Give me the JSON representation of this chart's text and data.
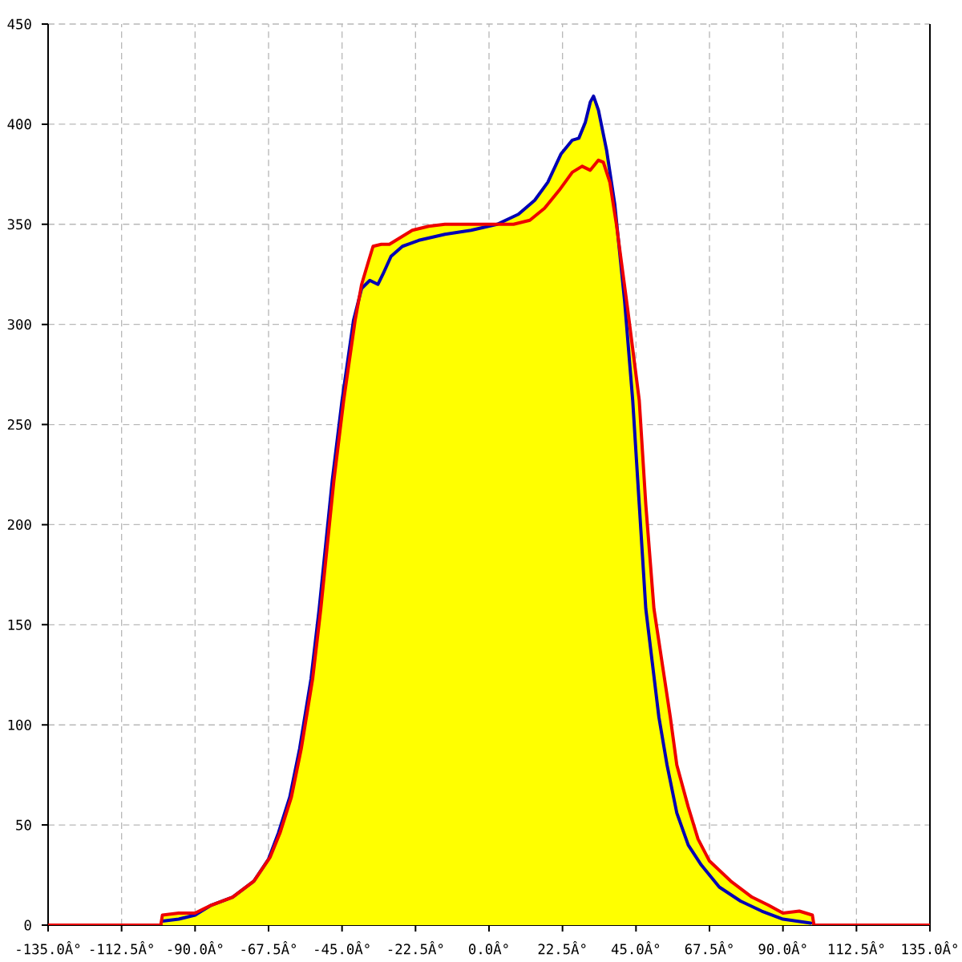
{
  "chart_data": {
    "type": "line",
    "xlim": [
      -135,
      135
    ],
    "ylim": [
      0,
      450
    ],
    "xticks": [
      {
        "value": -135,
        "label": "-135.0Â°"
      },
      {
        "value": -112.5,
        "label": "-112.5Â°"
      },
      {
        "value": -90,
        "label": "-90.0Â°"
      },
      {
        "value": -67.5,
        "label": "-67.5Â°"
      },
      {
        "value": -45,
        "label": "-45.0Â°"
      },
      {
        "value": -22.5,
        "label": "-22.5Â°"
      },
      {
        "value": 0,
        "label": "0.0Â°"
      },
      {
        "value": 22.5,
        "label": "22.5Â°"
      },
      {
        "value": 45,
        "label": "45.0Â°"
      },
      {
        "value": 67.5,
        "label": "67.5Â°"
      },
      {
        "value": 90,
        "label": "90.0Â°"
      },
      {
        "value": 112.5,
        "label": "112.5Â°"
      },
      {
        "value": 135,
        "label": "135.0Â°"
      }
    ],
    "yticks": [
      0,
      50,
      100,
      150,
      200,
      250,
      300,
      350,
      400,
      450
    ],
    "grid": true,
    "marker": "none",
    "line_style": "solid",
    "series": [
      {
        "type": "area",
        "color": "#ffff00",
        "x": [
          -100,
          -95,
          -90,
          -85,
          -78.5,
          -72,
          -67,
          -64,
          -60.5,
          -57.5,
          -54,
          -51.5,
          -47.5,
          -44.5,
          -41,
          -39,
          -37,
          -35.5,
          -33,
          -30.5,
          -27.5,
          -23.5,
          -18.5,
          -13.5,
          0,
          2.5,
          9,
          14,
          18,
          22,
          25.5,
          27.5,
          29.5,
          31,
          32,
          33.5,
          36,
          38.5,
          42.5,
          46,
          48,
          50.5,
          53,
          55.5,
          57.5,
          61,
          64,
          67.5,
          74,
          80.5,
          85.5,
          90,
          95,
          99
        ],
        "values": [
          5,
          6,
          6,
          10,
          14,
          22,
          34,
          46,
          64,
          88,
          123,
          158,
          222,
          262,
          302,
          320,
          331,
          339,
          340,
          340,
          343,
          347,
          349,
          350,
          350,
          350,
          355,
          362,
          371,
          385,
          392,
          393,
          401,
          411,
          414,
          407,
          387,
          360,
          307,
          262,
          210,
          158,
          131,
          104,
          80,
          59,
          43,
          32,
          22,
          14,
          10,
          6,
          7,
          5
        ]
      },
      {
        "color": "#0000b4",
        "x": [
          -100,
          -95,
          -90,
          -85,
          -78.5,
          -72,
          -67.5,
          -64.5,
          -61,
          -58,
          -54.5,
          -52,
          -48,
          -45,
          -41.5,
          -39,
          -36.5,
          -34,
          -32.5,
          -30,
          -26.5,
          -21.5,
          -13.5,
          -5.5,
          2.5,
          9,
          14,
          18,
          22,
          25.5,
          27.5,
          29.5,
          31,
          32,
          33.5,
          36,
          38.5,
          41.5,
          44,
          46,
          48,
          50,
          52,
          54.5,
          57.5,
          61,
          65,
          70.5,
          77,
          83.5,
          90,
          98.5
        ],
        "values": [
          2,
          3,
          5,
          10,
          14,
          22,
          33,
          46,
          64,
          88,
          123,
          158,
          222,
          262,
          302,
          318,
          322,
          320,
          325,
          334,
          339,
          342,
          345,
          347,
          350,
          355,
          362,
          371,
          385,
          392,
          393,
          401,
          411,
          414,
          407,
          387,
          360,
          312,
          262,
          210,
          158,
          131,
          104,
          80,
          56,
          40,
          30,
          19,
          12,
          7,
          3,
          1
        ]
      },
      {
        "color": "#ee0000",
        "x": [
          -135,
          -100.5,
          -100,
          -95,
          -90,
          -85,
          -78.5,
          -72,
          -67,
          -64,
          -60.5,
          -57.5,
          -54,
          -51.5,
          -47.5,
          -44.5,
          -41,
          -39,
          -37,
          -35.5,
          -33,
          -30.5,
          -27.5,
          -23.5,
          -18.5,
          -13.5,
          0,
          7.5,
          12.5,
          17,
          21.5,
          25.5,
          28.5,
          31,
          33.5,
          35,
          37,
          39,
          42.5,
          46,
          48,
          50.5,
          53,
          55.5,
          57.5,
          61,
          64,
          67.5,
          74,
          80.5,
          85.5,
          90,
          95,
          99,
          99.5,
          135
        ],
        "values": [
          0,
          0,
          5,
          6,
          6,
          10,
          14,
          22,
          34,
          46,
          64,
          88,
          123,
          158,
          222,
          262,
          302,
          320,
          331,
          339,
          340,
          340,
          343,
          347,
          349,
          350,
          350,
          350,
          352,
          358,
          367,
          376,
          379,
          377,
          382,
          381,
          371,
          350,
          307,
          262,
          210,
          158,
          131,
          104,
          80,
          59,
          43,
          32,
          22,
          14,
          10,
          6,
          7,
          5,
          0,
          0
        ]
      }
    ]
  }
}
